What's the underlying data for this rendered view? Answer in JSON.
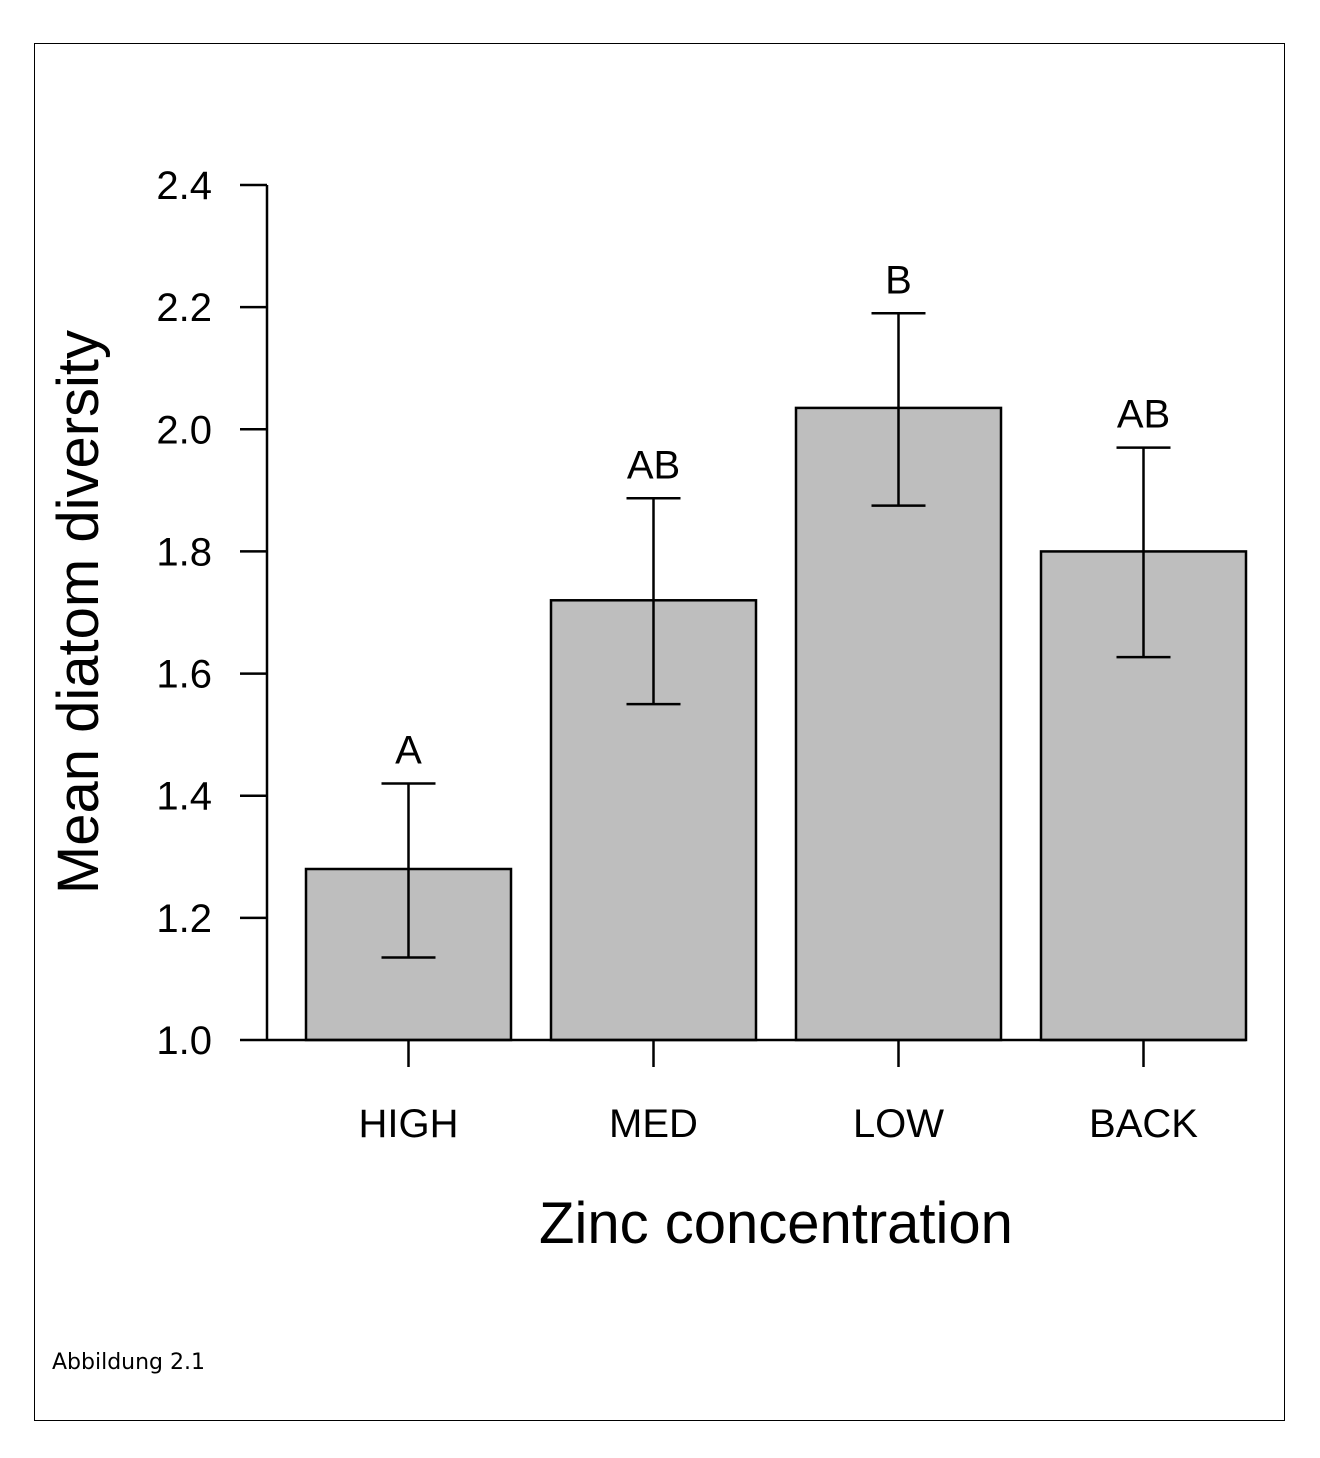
{
  "chart_data": {
    "type": "bar",
    "title": "",
    "xlabel": "Zinc concentration",
    "ylabel": "Mean diatom diversity",
    "ylim": [
      1.0,
      2.4
    ],
    "yticks": [
      "1.0",
      "1.2",
      "1.4",
      "1.6",
      "1.8",
      "2.0",
      "2.2",
      "2.4"
    ],
    "categories": [
      "HIGH",
      "MED",
      "LOW",
      "BACK"
    ],
    "values": [
      1.28,
      1.72,
      2.035,
      1.8
    ],
    "error_low": [
      1.135,
      1.55,
      1.875,
      1.627
    ],
    "error_high": [
      1.42,
      1.887,
      2.19,
      1.97
    ],
    "group_labels": [
      "A",
      "AB",
      "B",
      "AB"
    ],
    "bar_color": "#bebebe",
    "grid": false,
    "legend": "none"
  },
  "caption": "Abbildung 2.1"
}
